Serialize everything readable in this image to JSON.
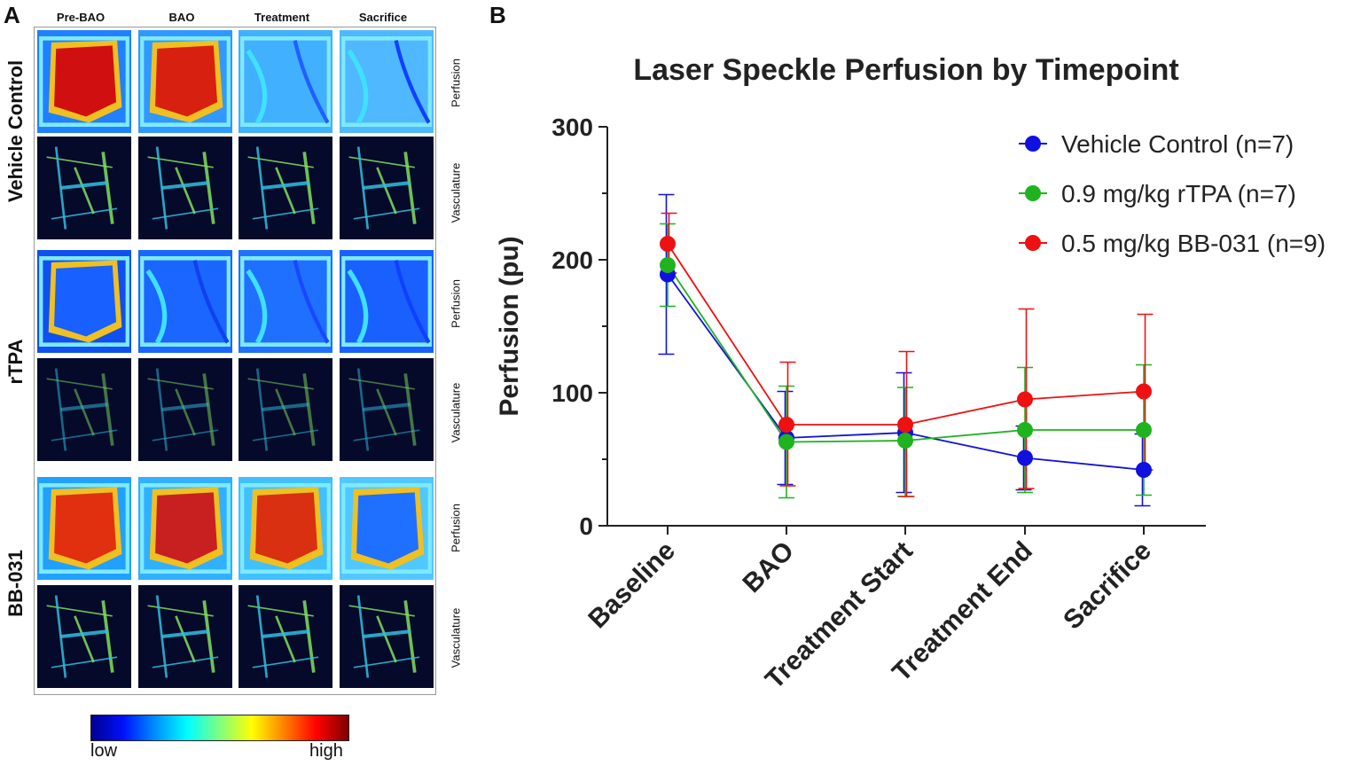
{
  "panel_a": {
    "letter": "A",
    "columns": [
      "Pre-BAO",
      "BAO",
      "Treatment",
      "Sacrifice"
    ],
    "groups": [
      {
        "name": "Vehicle Control",
        "rows": [
          "Perfusion",
          "Vasculature"
        ]
      },
      {
        "name": "rTPA",
        "rows": [
          "Perfusion",
          "Vasculature"
        ]
      },
      {
        "name": "BB-031",
        "rows": [
          "Perfusion",
          "Vasculature"
        ]
      }
    ],
    "colorbar": {
      "low": "low",
      "high": "high"
    }
  },
  "panel_b": {
    "letter": "B"
  },
  "chart_data": {
    "type": "line",
    "title": "Laser Speckle Perfusion by Timepoint",
    "xlabel": "",
    "ylabel": "Perfusion (pu)",
    "categories": [
      "Baseline",
      "BAO",
      "Treatment Start",
      "Treatment End",
      "Sacrifice"
    ],
    "ylim": [
      0,
      300
    ],
    "yticks": [
      0,
      100,
      200,
      300
    ],
    "legend_position": "top-right",
    "series": [
      {
        "name": "Vehicle Control (n=7)",
        "color": "#1010e0",
        "values": [
          189,
          66,
          70,
          51,
          42
        ],
        "err_low": [
          129,
          31,
          25,
          27,
          15
        ],
        "err_high": [
          249,
          101,
          115,
          75,
          69
        ]
      },
      {
        "name": "0.9 mg/kg rTPA (n=7)",
        "color": "#1fb31f",
        "values": [
          196,
          63,
          64,
          72,
          72
        ],
        "err_low": [
          165,
          21,
          22,
          25,
          23
        ],
        "err_high": [
          227,
          105,
          104,
          119,
          121
        ]
      },
      {
        "name": "0.5 mg/kg BB-031 (n=9)",
        "color": "#ee1111",
        "values": [
          212,
          76,
          76,
          95,
          101
        ],
        "err_low": [
          190,
          30,
          22,
          28,
          42
        ],
        "err_high": [
          235,
          123,
          131,
          163,
          159
        ]
      }
    ]
  }
}
